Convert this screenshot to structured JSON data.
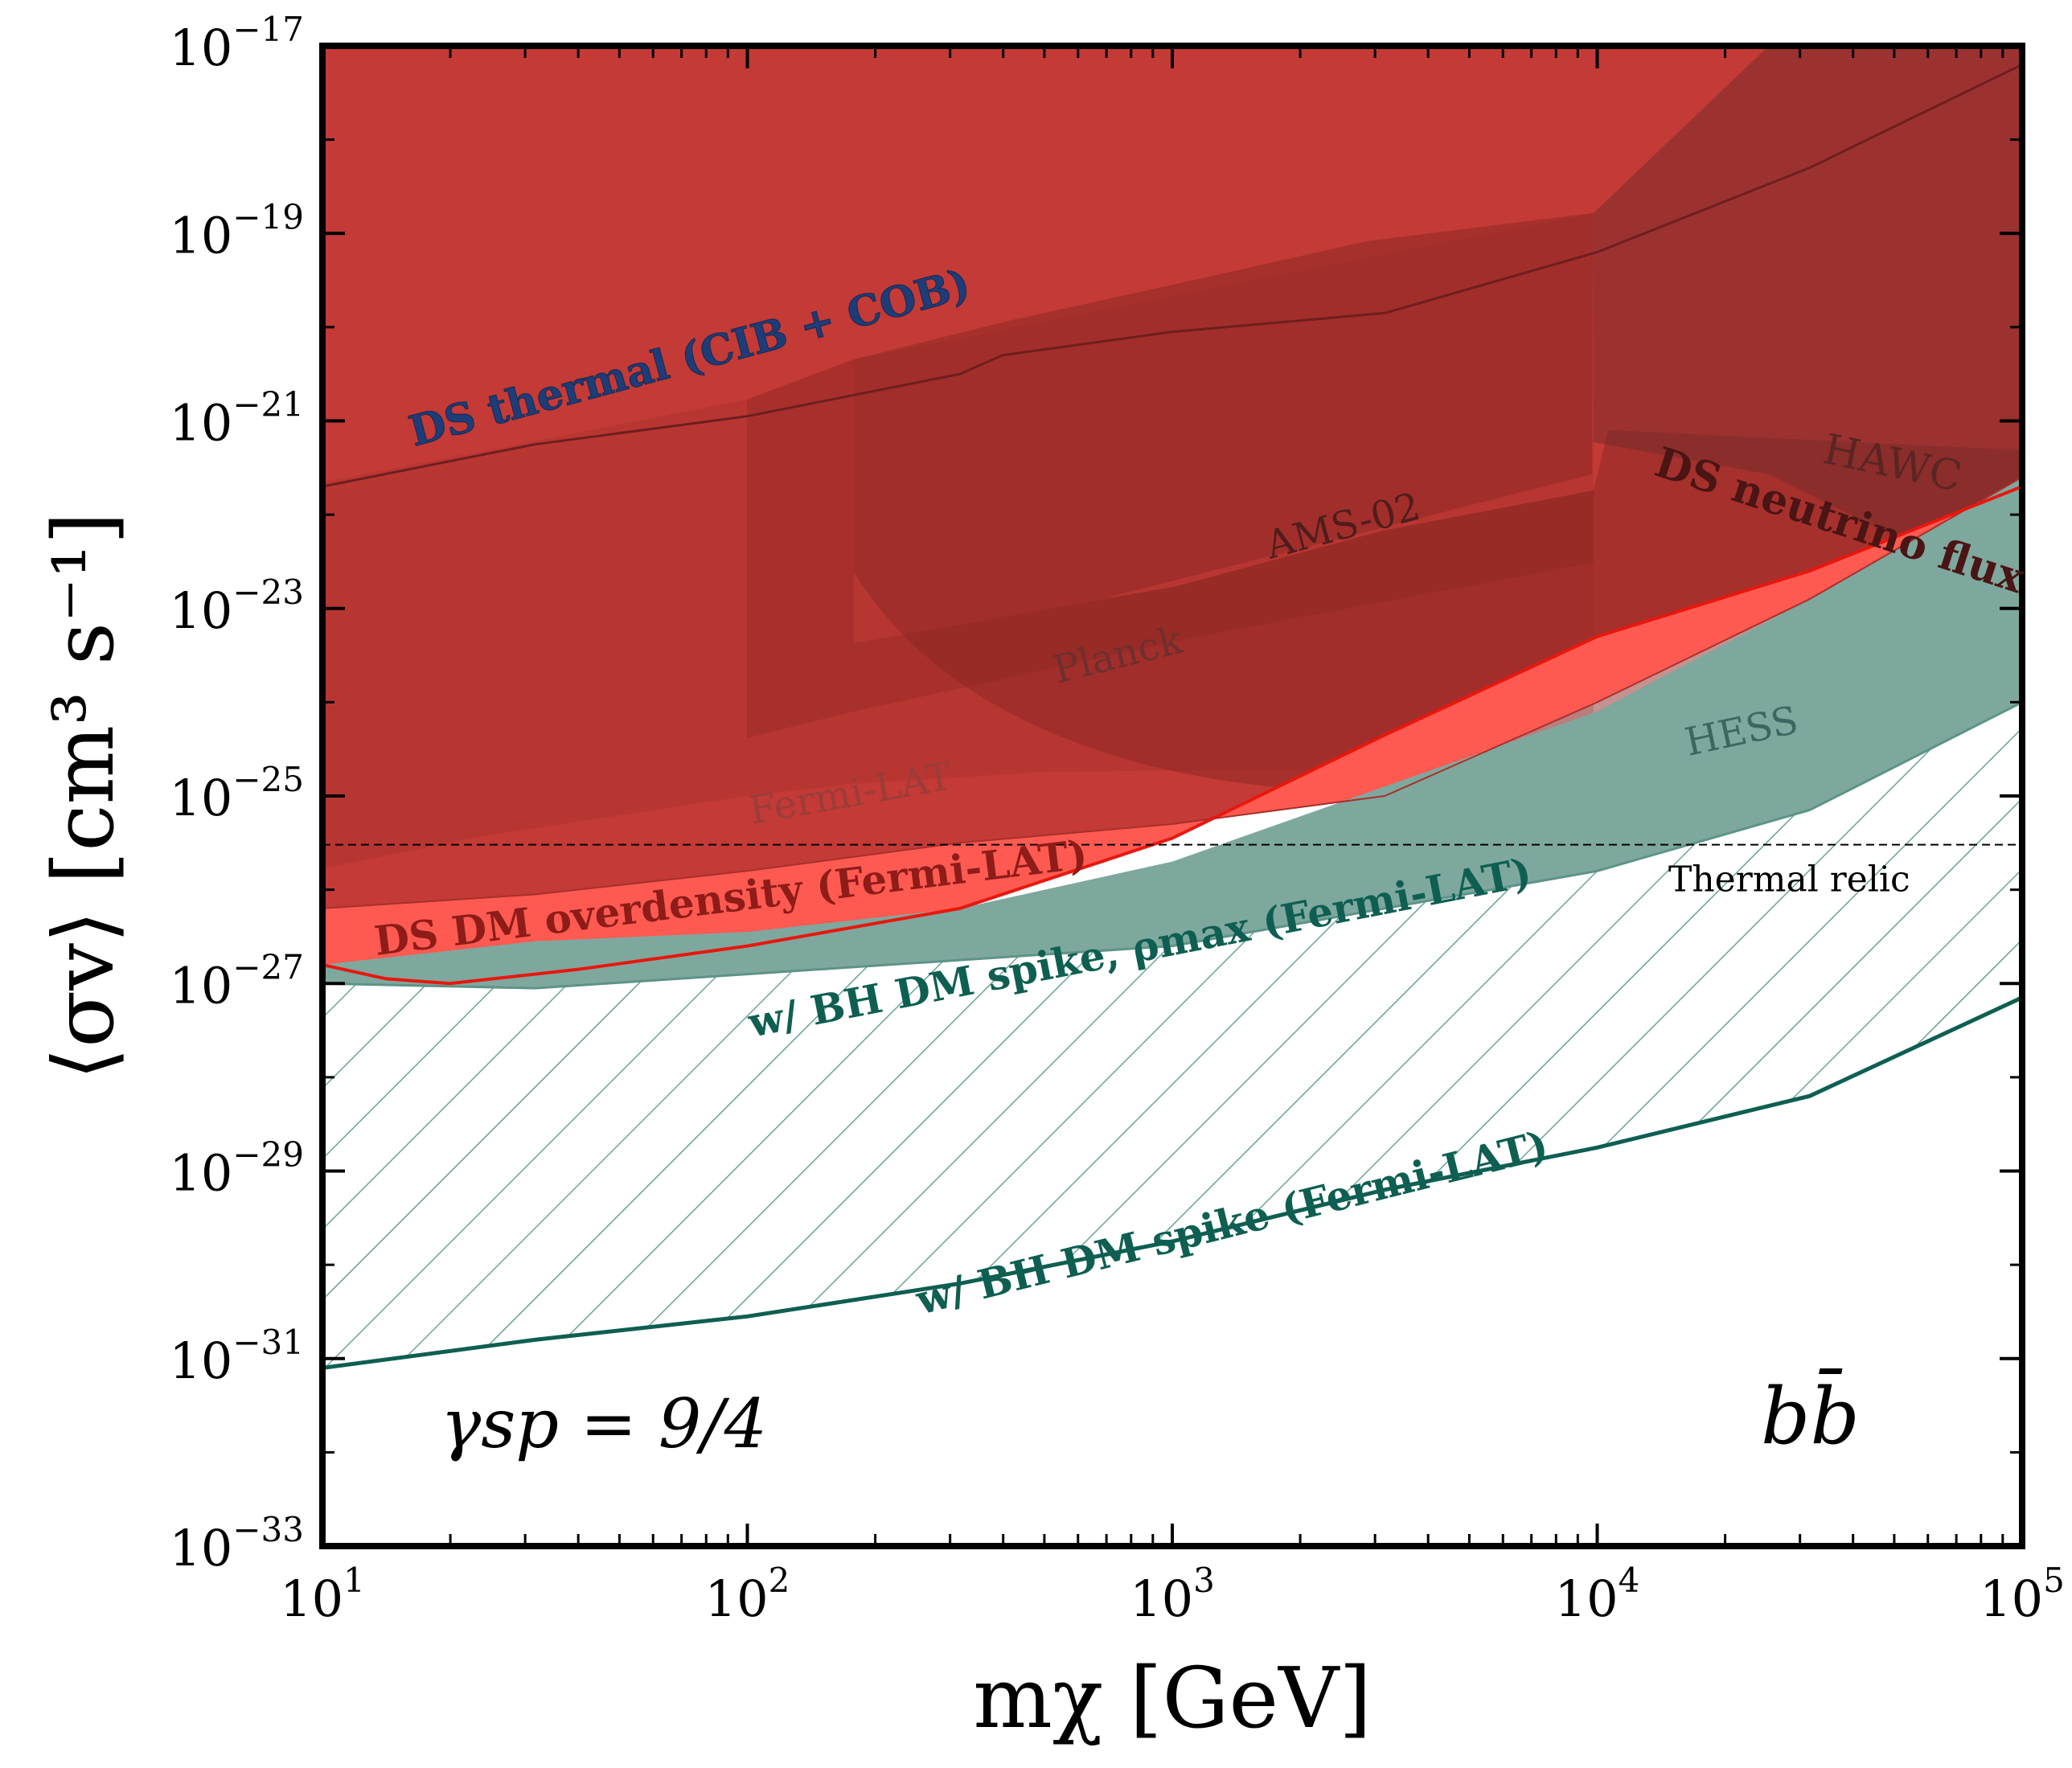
{
  "chart_data": {
    "type": "area",
    "channel_label": "bb̄",
    "annotation": "γsp = 9/4",
    "x_axis": {
      "label": "mχ [GeV]",
      "scale": "log",
      "range": [
        10,
        100000
      ],
      "ticks": [
        {
          "value": 10,
          "base": "10",
          "exp": "1"
        },
        {
          "value": 100,
          "base": "10",
          "exp": "2"
        },
        {
          "value": 1000,
          "base": "10",
          "exp": "3"
        },
        {
          "value": 10000,
          "base": "10",
          "exp": "4"
        },
        {
          "value": 100000,
          "base": "10",
          "exp": "5"
        }
      ]
    },
    "y_axis": {
      "label": "⟨σv⟩ [cm³ s⁻¹]",
      "scale": "log",
      "range_log10": [
        -33,
        -17
      ],
      "ticks": [
        {
          "log": -17,
          "base": "10",
          "exp": "−17"
        },
        {
          "log": -19,
          "base": "10",
          "exp": "−19"
        },
        {
          "log": -21,
          "base": "10",
          "exp": "−21"
        },
        {
          "log": -23,
          "base": "10",
          "exp": "−23"
        },
        {
          "log": -25,
          "base": "10",
          "exp": "−25"
        },
        {
          "log": -27,
          "base": "10",
          "exp": "−27"
        },
        {
          "log": -29,
          "base": "10",
          "exp": "−29"
        },
        {
          "log": -31,
          "base": "10",
          "exp": "−31"
        },
        {
          "log": -33,
          "base": "10",
          "exp": "−33"
        }
      ]
    },
    "thermal_relic": {
      "label": "Thermal relic",
      "log_sigma_v": -25.52
    },
    "regions": [
      {
        "id": "ds-thermal",
        "label": "DS thermal (CIB + COB)",
        "color": "#6b8fc2",
        "boundary_log10": [
          [
            1,
            -21.7
          ],
          [
            1.5,
            -21.25
          ],
          [
            2,
            -20.95
          ],
          [
            2.5,
            -20.5
          ],
          [
            2.6,
            -20.3
          ],
          [
            3,
            -20.05
          ],
          [
            3.5,
            -19.85
          ],
          [
            4,
            -19.2
          ],
          [
            4.5,
            -18.3
          ],
          [
            5,
            -17.2
          ]
        ]
      },
      {
        "id": "ds-neutrino",
        "label": "DS neutrino flux",
        "color": "#c33a36",
        "lower_log10": [
          [
            1,
            -26.2
          ],
          [
            1.5,
            -26.05
          ],
          [
            2,
            -25.8
          ],
          [
            2.5,
            -25.5
          ],
          [
            3,
            -25.3
          ],
          [
            3.5,
            -25.0
          ],
          [
            4,
            -24.0
          ],
          [
            4.5,
            -22.9
          ],
          [
            5,
            -21.6
          ]
        ]
      },
      {
        "id": "ds-dm-overdensity",
        "label": "DS DM overdensity (Fermi-LAT)",
        "color": "#ff5a52",
        "lower_log10": [
          [
            1,
            -26.8
          ],
          [
            1.15,
            -26.95
          ],
          [
            1.3,
            -27.0
          ],
          [
            1.6,
            -26.85
          ],
          [
            2,
            -26.6
          ],
          [
            2.5,
            -26.2
          ],
          [
            3,
            -25.45
          ],
          [
            3.5,
            -24.35
          ],
          [
            4,
            -23.3
          ],
          [
            4.5,
            -22.6
          ],
          [
            5,
            -21.7
          ]
        ]
      },
      {
        "id": "bh-spike-rho-max",
        "label": "w/ BH DM spike, ρmax (Fermi-LAT)",
        "color": "#7ea89e",
        "lower_log10": [
          [
            1,
            -27.0
          ],
          [
            1.5,
            -27.05
          ],
          [
            2,
            -26.9
          ],
          [
            2.5,
            -26.75
          ],
          [
            3,
            -26.6
          ],
          [
            3.5,
            -26.2
          ],
          [
            4,
            -25.8
          ],
          [
            4.5,
            -25.15
          ],
          [
            5,
            -24.0
          ]
        ],
        "upper_log10": [
          [
            1,
            -26.8
          ],
          [
            1.5,
            -26.55
          ],
          [
            2,
            -26.45
          ],
          [
            2.5,
            -26.2
          ],
          [
            3,
            -25.7
          ],
          [
            3.5,
            -24.9
          ],
          [
            4,
            -24.1
          ],
          [
            4.5,
            -22.9
          ],
          [
            5,
            -21.6
          ]
        ]
      },
      {
        "id": "bh-spike",
        "label": "w/ BH DM spike (Fermi-LAT)",
        "color": "#0e5f52",
        "line_log10": [
          [
            1,
            -31.1
          ],
          [
            1.5,
            -30.8
          ],
          [
            2,
            -30.55
          ],
          [
            2.5,
            -30.2
          ],
          [
            3,
            -29.75
          ],
          [
            3.5,
            -29.2
          ],
          [
            4,
            -28.75
          ],
          [
            4.5,
            -28.2
          ],
          [
            5,
            -27.15
          ]
        ]
      }
    ],
    "experiment_bounds": [
      {
        "name": "Fermi-LAT"
      },
      {
        "name": "Planck"
      },
      {
        "name": "AMS-02"
      },
      {
        "name": "HESS"
      },
      {
        "name": "HAWC"
      }
    ]
  }
}
